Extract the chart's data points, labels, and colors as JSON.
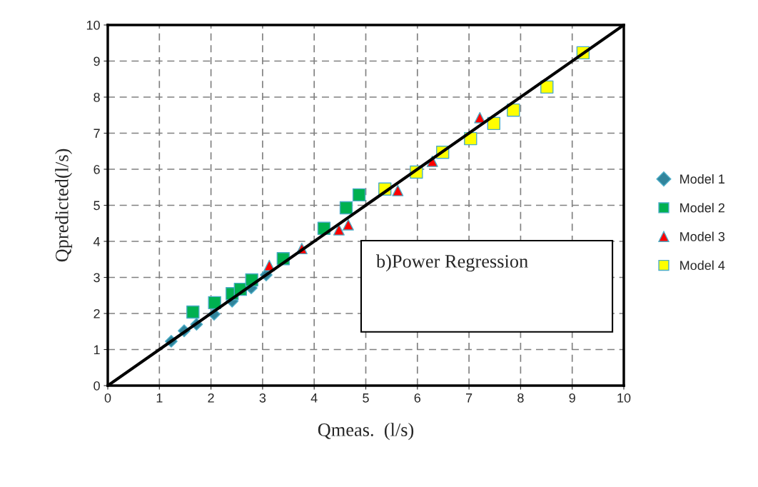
{
  "chart_data": {
    "type": "scatter",
    "xlabel": "Qmeas.  (l/s)",
    "ylabel": "Qpredicted(l/s)",
    "xlim": [
      0,
      10
    ],
    "ylim": [
      0,
      10
    ],
    "xticks": [
      0,
      1,
      2,
      3,
      4,
      5,
      6,
      7,
      8,
      9,
      10
    ],
    "yticks": [
      0,
      1,
      2,
      3,
      4,
      5,
      6,
      7,
      8,
      9,
      10
    ],
    "grid": true,
    "legend": "right",
    "annotations": [
      "b)Power Regression"
    ],
    "series": [
      {
        "name": "Model 1",
        "color": "#31859c",
        "marker": "diamond",
        "x": [
          1.23,
          1.48,
          1.72,
          2.06,
          2.41,
          2.78,
          3.07
        ],
        "values": [
          1.23,
          1.52,
          1.7,
          1.98,
          2.34,
          2.71,
          3.07
        ]
      },
      {
        "name": "Model 2",
        "color": "#00b050",
        "marker": "square",
        "x": [
          1.65,
          2.07,
          2.41,
          2.57,
          2.79,
          3.4,
          4.19,
          4.62,
          4.87
        ],
        "values": [
          2.04,
          2.3,
          2.55,
          2.67,
          2.93,
          3.52,
          4.36,
          4.93,
          5.29
        ]
      },
      {
        "name": "Model 3",
        "color": "#ff0000",
        "marker": "triangle",
        "x": [
          3.13,
          3.76,
          4.48,
          4.66,
          5.62,
          6.29,
          7.21
        ],
        "values": [
          3.33,
          3.8,
          4.32,
          4.46,
          5.41,
          6.22,
          7.43
        ]
      },
      {
        "name": "Model 4",
        "color": "#ffff00",
        "marker": "square",
        "x": [
          5.37,
          5.98,
          6.49,
          7.03,
          7.48,
          7.86,
          8.51,
          9.21
        ],
        "values": [
          5.45,
          5.92,
          6.47,
          6.85,
          7.27,
          7.64,
          8.28,
          9.23
        ]
      },
      {
        "type": "line",
        "color": "#000000",
        "x": [
          0,
          10
        ],
        "values": [
          0,
          10
        ]
      }
    ]
  }
}
